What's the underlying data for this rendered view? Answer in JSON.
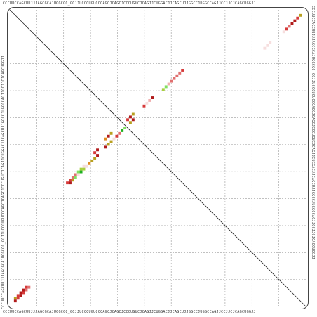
{
  "sequence": {
    "top": "CCCUUCCAGCUUJJJAGCGCAJUGGCGC_GGJJUCCCUGUCCCAGCJCAGCJCCCUGUCJCAGJJCUGGACJJCAGCUJJGGCCJUGGCCAGJJCCJJCJCAGCUGGJJ",
    "bottom": "CCCUUCCAGCUUJJJAGCGCAJUGGCGC_GGJJUCCCUGUCCCAGCJCAGCJCCCUGUCJCAGJJCUGGACJJCAGCUJJGGCCJUGGCCAGJJCCJJCJCAGCUGGJJ",
    "left": "CCCUUCCAGCUUJJJAGCGCAJUGGCGC_GGJJUCCCUGUCCCAGCJCAGCJCCCUGUCJCAGJJCUGGACJJCAGCUJJGGCCJUGGCCAGJJCCJJCJCAGCUGGJJ",
    "right": "CCCUUCCAGCUUJJJAGCGCAJUGGCGC_GGJJUCCCUGUCCCAGCJCAGCJCCCUGUCJCAGJJCUGGACJJCAGCUJJGGCCJUGGCCAGJJCCJJCJCAGCUGGJJ"
  },
  "grid": {
    "divisions": 11,
    "color": "#9a9a9a"
  },
  "colors": {
    "dark_red": "#b01a1a",
    "red": "#d63a3a",
    "pink": "#e07070",
    "light_pink": "#f0b0b0",
    "orange": "#e08a20",
    "olive": "#b8a020",
    "yellow_green": "#a8d040",
    "light_green": "#80e060",
    "green": "#20b020",
    "pale": "#f6dede"
  },
  "chart_data": {
    "type": "heatmap",
    "description_axis": "base-pair probability dot plot; rows and columns are sequence positions",
    "n": 108,
    "upper_triangle": [
      {
        "i": 2,
        "j": 106,
        "c": "olive"
      },
      {
        "i": 3,
        "j": 105,
        "c": "red"
      },
      {
        "i": 4,
        "j": 104,
        "c": "dark_red"
      },
      {
        "i": 5,
        "j": 103,
        "c": "dark_red"
      },
      {
        "i": 6,
        "j": 102,
        "c": "pink"
      },
      {
        "i": 7,
        "j": 101,
        "c": "red"
      },
      {
        "i": 8,
        "j": 100,
        "c": "pale"
      },
      {
        "i": 12,
        "j": 95,
        "c": "pale"
      },
      {
        "i": 13,
        "j": 94,
        "c": "pale"
      },
      {
        "i": 14,
        "j": 93,
        "c": "pale"
      },
      {
        "i": 22,
        "j": 63,
        "c": "red"
      },
      {
        "i": 23,
        "j": 62,
        "c": "pink"
      },
      {
        "i": 24,
        "j": 61,
        "c": "pink"
      },
      {
        "i": 25,
        "j": 60,
        "c": "pink"
      },
      {
        "i": 26,
        "j": 59,
        "c": "pink"
      },
      {
        "i": 27,
        "j": 58,
        "c": "light_pink"
      },
      {
        "i": 28,
        "j": 57,
        "c": "light_green"
      },
      {
        "i": 29,
        "j": 56,
        "c": "yellow_green"
      },
      {
        "i": 32,
        "j": 52,
        "c": "dark_red"
      },
      {
        "i": 33,
        "j": 51,
        "c": "light_pink"
      },
      {
        "i": 34,
        "j": 50,
        "c": "pale"
      },
      {
        "i": 35,
        "j": 49,
        "c": "red"
      },
      {
        "i": 38,
        "j": 45,
        "c": "olive"
      },
      {
        "i": 39,
        "j": 44,
        "c": "dark_red"
      },
      {
        "i": 40,
        "j": 43,
        "c": "red"
      },
      {
        "i": 45,
        "j": 37,
        "c": "olive"
      },
      {
        "i": 46,
        "j": 36,
        "c": "dark_red"
      },
      {
        "i": 47,
        "j": 35,
        "c": "orange"
      },
      {
        "i": 51,
        "j": 32,
        "c": "dark_red"
      },
      {
        "i": 52,
        "j": 31,
        "c": "red"
      },
      {
        "i": 57,
        "j": 27,
        "c": "pale"
      },
      {
        "i": 58,
        "j": 26,
        "c": "yellow_green"
      },
      {
        "i": 59,
        "j": 25,
        "c": "light_green"
      },
      {
        "i": 60,
        "j": 24,
        "c": "pink"
      },
      {
        "i": 61,
        "j": 23,
        "c": "pink"
      },
      {
        "i": 62,
        "j": 22,
        "c": "red"
      },
      {
        "i": 63,
        "j": 21,
        "c": "red"
      },
      {
        "i": 101,
        "j": 6,
        "c": "red"
      },
      {
        "i": 102,
        "j": 5,
        "c": "dark_red"
      },
      {
        "i": 103,
        "j": 4,
        "c": "dark_red"
      },
      {
        "i": 104,
        "j": 3,
        "c": "red"
      },
      {
        "i": 105,
        "j": 2,
        "c": "olive"
      }
    ],
    "lower_triangle": [
      {
        "i": 2,
        "j": 106,
        "c": "dark_red"
      },
      {
        "i": 3,
        "j": 105,
        "c": "red"
      },
      {
        "i": 4,
        "j": 104,
        "c": "dark_red"
      },
      {
        "i": 5,
        "j": 103,
        "c": "red"
      },
      {
        "i": 6,
        "j": 102,
        "c": "pink"
      },
      {
        "i": 7,
        "j": 101,
        "c": "pink"
      },
      {
        "i": 22,
        "j": 63,
        "c": "dark_red"
      },
      {
        "i": 23,
        "j": 62,
        "c": "olive"
      },
      {
        "i": 24,
        "j": 61,
        "c": "light_green"
      },
      {
        "i": 25,
        "j": 60,
        "c": "pale"
      },
      {
        "i": 26,
        "j": 59,
        "c": "green"
      },
      {
        "i": 27,
        "j": 58,
        "c": "yellow_green"
      },
      {
        "i": 28,
        "j": 57,
        "c": "pale"
      },
      {
        "i": 29,
        "j": 56,
        "c": "orange"
      },
      {
        "i": 30,
        "j": 55,
        "c": "olive"
      },
      {
        "i": 31,
        "j": 54,
        "c": "olive"
      },
      {
        "i": 32,
        "j": 53,
        "c": "dark_red"
      },
      {
        "i": 35,
        "j": 50,
        "c": "dark_red"
      },
      {
        "i": 36,
        "j": 49,
        "c": "olive"
      },
      {
        "i": 37,
        "j": 48,
        "c": "olive"
      },
      {
        "i": 38,
        "j": 47,
        "c": "pale"
      },
      {
        "i": 39,
        "j": 46,
        "c": "red"
      },
      {
        "i": 40,
        "j": 45,
        "c": "pink"
      },
      {
        "i": 41,
        "j": 44,
        "c": "green"
      },
      {
        "i": 42,
        "j": 43,
        "c": "light_green"
      },
      {
        "i": 44,
        "j": 41,
        "c": "olive"
      },
      {
        "i": 45,
        "j": 40,
        "c": "dark_red"
      }
    ]
  }
}
